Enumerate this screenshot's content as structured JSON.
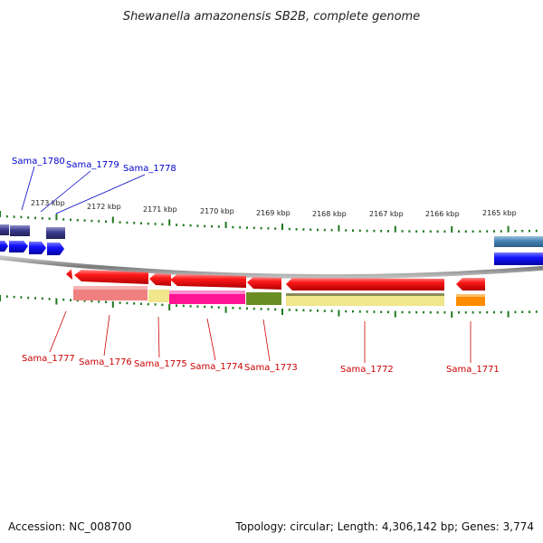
{
  "title": "Shewanella amazonensis SB2B, complete genome",
  "footer": {
    "accession": "Accession: NC_008700",
    "info": "Topology: circular; Length: 4,306,142 bp; Genes: 3,774"
  },
  "ticks": [
    "2173 kbp",
    "2172 kbp",
    "2171 kbp",
    "2170 kbp",
    "2169 kbp",
    "2168 kbp",
    "2167 kbp",
    "2166 kbp",
    "2165 kbp"
  ],
  "genes_top": [
    "Sama_1780",
    "Sama_1779",
    "Sama_1778"
  ],
  "genes_bottom": [
    "Sama_1777",
    "Sama_1776",
    "Sama_1775",
    "Sama_1774",
    "Sama_1773",
    "Sama_1772",
    "Sama_1771"
  ],
  "colors": {
    "top_label": "#0000cc",
    "bottom_label": "#cc0000",
    "tick": "#1f7a1f",
    "backbone": "#888888"
  }
}
